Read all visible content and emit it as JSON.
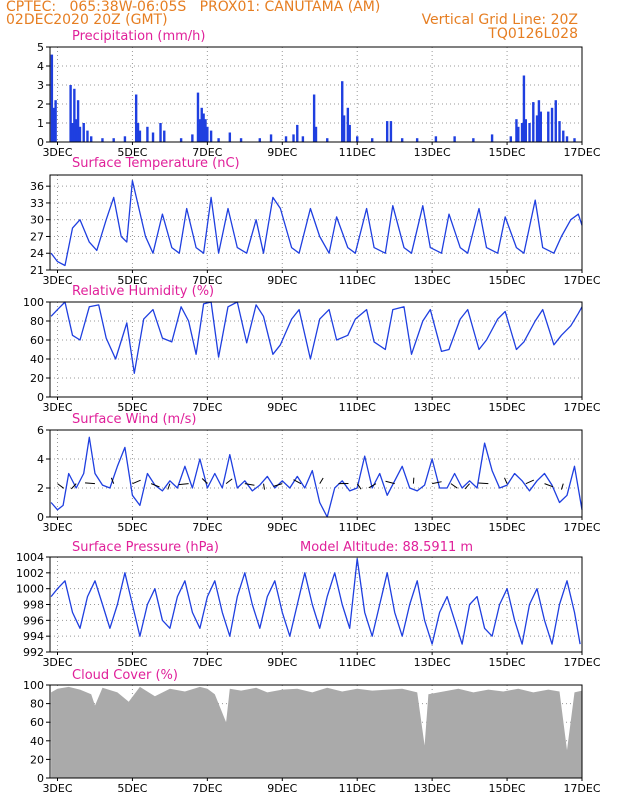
{
  "header": {
    "line1": "CPTEC:   065:38W-06:05S   PROX01: CANUTAMA (AM)",
    "line2_left": "02DEC2020 20Z (GMT)",
    "line2_right": "Vertical Grid Line: 20Z",
    "line3_right": "TQ0126L028"
  },
  "colors": {
    "header": "#e67e22",
    "panel_title": "#e0209a",
    "series": "#1f3fe0",
    "cloud": "#aaaaaa",
    "grid": "#999999"
  },
  "chart_data": [
    {
      "type": "bar",
      "title": "Precipitation (mm/h)",
      "x_ticks": [
        "3DEC",
        "5DEC",
        "7DEC",
        "9DEC",
        "11DEC",
        "13DEC",
        "15DEC",
        "17DEC"
      ],
      "xlim_days": [
        2.8,
        17.0
      ],
      "ylim": [
        0,
        5
      ],
      "yticks": [
        0,
        1,
        2,
        3,
        4,
        5
      ],
      "grid": true,
      "events": [
        {
          "day": 2.85,
          "value": 4.6
        },
        {
          "day": 2.9,
          "value": 1.8
        },
        {
          "day": 2.95,
          "value": 2.2
        },
        {
          "day": 3.35,
          "value": 3.0
        },
        {
          "day": 3.4,
          "value": 1.0
        },
        {
          "day": 3.45,
          "value": 2.8
        },
        {
          "day": 3.5,
          "value": 1.2
        },
        {
          "day": 3.55,
          "value": 2.2
        },
        {
          "day": 3.6,
          "value": 0.8
        },
        {
          "day": 3.7,
          "value": 1.0
        },
        {
          "day": 3.8,
          "value": 0.6
        },
        {
          "day": 3.9,
          "value": 0.3
        },
        {
          "day": 4.2,
          "value": 0.2
        },
        {
          "day": 4.5,
          "value": 0.2
        },
        {
          "day": 4.8,
          "value": 0.3
        },
        {
          "day": 5.1,
          "value": 2.5
        },
        {
          "day": 5.15,
          "value": 1.0
        },
        {
          "day": 5.2,
          "value": 0.6
        },
        {
          "day": 5.4,
          "value": 0.8
        },
        {
          "day": 5.55,
          "value": 0.5
        },
        {
          "day": 5.75,
          "value": 1.0
        },
        {
          "day": 5.85,
          "value": 0.6
        },
        {
          "day": 6.3,
          "value": 0.2
        },
        {
          "day": 6.6,
          "value": 0.4
        },
        {
          "day": 6.75,
          "value": 2.6
        },
        {
          "day": 6.8,
          "value": 1.2
        },
        {
          "day": 6.85,
          "value": 1.8
        },
        {
          "day": 6.9,
          "value": 1.5
        },
        {
          "day": 6.95,
          "value": 1.2
        },
        {
          "day": 7.0,
          "value": 0.8
        },
        {
          "day": 7.1,
          "value": 0.6
        },
        {
          "day": 7.3,
          "value": 0.2
        },
        {
          "day": 7.6,
          "value": 0.5
        },
        {
          "day": 7.9,
          "value": 0.2
        },
        {
          "day": 8.4,
          "value": 0.2
        },
        {
          "day": 8.7,
          "value": 0.4
        },
        {
          "day": 9.1,
          "value": 0.3
        },
        {
          "day": 9.3,
          "value": 0.4
        },
        {
          "day": 9.4,
          "value": 0.9
        },
        {
          "day": 9.55,
          "value": 0.3
        },
        {
          "day": 9.85,
          "value": 2.5
        },
        {
          "day": 9.9,
          "value": 0.8
        },
        {
          "day": 10.2,
          "value": 0.2
        },
        {
          "day": 10.6,
          "value": 3.2
        },
        {
          "day": 10.65,
          "value": 1.4
        },
        {
          "day": 10.75,
          "value": 1.8
        },
        {
          "day": 10.8,
          "value": 0.9
        },
        {
          "day": 11.0,
          "value": 0.3
        },
        {
          "day": 11.4,
          "value": 0.2
        },
        {
          "day": 11.8,
          "value": 1.1
        },
        {
          "day": 11.9,
          "value": 1.1
        },
        {
          "day": 12.2,
          "value": 0.2
        },
        {
          "day": 12.6,
          "value": 0.2
        },
        {
          "day": 13.1,
          "value": 0.3
        },
        {
          "day": 13.6,
          "value": 0.3
        },
        {
          "day": 14.1,
          "value": 0.2
        },
        {
          "day": 14.6,
          "value": 0.4
        },
        {
          "day": 15.1,
          "value": 0.3
        },
        {
          "day": 15.25,
          "value": 1.2
        },
        {
          "day": 15.3,
          "value": 0.8
        },
        {
          "day": 15.4,
          "value": 1.0
        },
        {
          "day": 15.45,
          "value": 3.5
        },
        {
          "day": 15.5,
          "value": 1.2
        },
        {
          "day": 15.6,
          "value": 1.0
        },
        {
          "day": 15.7,
          "value": 2.1
        },
        {
          "day": 15.8,
          "value": 1.4
        },
        {
          "day": 15.85,
          "value": 2.2
        },
        {
          "day": 15.9,
          "value": 1.6
        },
        {
          "day": 16.1,
          "value": 1.6
        },
        {
          "day": 16.2,
          "value": 1.8
        },
        {
          "day": 16.3,
          "value": 2.2
        },
        {
          "day": 16.4,
          "value": 1.1
        },
        {
          "day": 16.5,
          "value": 0.6
        },
        {
          "day": 16.6,
          "value": 0.3
        },
        {
          "day": 16.8,
          "value": 0.2
        }
      ]
    },
    {
      "type": "line",
      "title": "Surface Temperature (nC)",
      "x_ticks": [
        "3DEC",
        "5DEC",
        "7DEC",
        "9DEC",
        "11DEC",
        "13DEC",
        "15DEC",
        "17DEC"
      ],
      "xlim_days": [
        2.8,
        17.0
      ],
      "ylim": [
        21,
        38
      ],
      "yticks": [
        21,
        24,
        27,
        30,
        33,
        36
      ],
      "grid": true,
      "x": [
        2.83,
        3.0,
        3.2,
        3.4,
        3.6,
        3.85,
        4.05,
        4.3,
        4.5,
        4.7,
        4.85,
        5.0,
        5.35,
        5.55,
        5.8,
        6.05,
        6.25,
        6.45,
        6.7,
        6.9,
        7.1,
        7.3,
        7.55,
        7.8,
        8.05,
        8.3,
        8.5,
        8.75,
        8.95,
        9.25,
        9.45,
        9.75,
        10.0,
        10.25,
        10.45,
        10.75,
        10.95,
        11.25,
        11.45,
        11.75,
        11.95,
        12.25,
        12.45,
        12.75,
        12.95,
        13.25,
        13.45,
        13.75,
        13.95,
        14.25,
        14.45,
        14.75,
        14.95,
        15.25,
        15.45,
        15.75,
        15.95,
        16.25,
        16.45,
        16.7,
        16.9,
        17.0
      ],
      "y": [
        24.0,
        22.5,
        21.8,
        28.5,
        30.0,
        26.0,
        24.5,
        30.0,
        34.0,
        27.0,
        26.0,
        37.0,
        27.0,
        24.0,
        31.0,
        25.0,
        24.0,
        32.0,
        25.0,
        24.0,
        34.0,
        24.0,
        32.0,
        25.0,
        24.0,
        30.0,
        24.0,
        34.0,
        32.0,
        25.0,
        24.0,
        32.0,
        27.0,
        24.0,
        30.5,
        25.0,
        24.0,
        32.0,
        25.0,
        24.0,
        32.5,
        25.0,
        24.0,
        32.5,
        25.0,
        24.0,
        31.0,
        25.0,
        24.0,
        32.0,
        25.0,
        24.0,
        30.5,
        25.0,
        24.0,
        33.5,
        25.0,
        24.0,
        27.0,
        30.0,
        31.0,
        29.0
      ]
    },
    {
      "type": "line",
      "title": "Relative Humidity (%)",
      "x_ticks": [
        "3DEC",
        "5DEC",
        "7DEC",
        "9DEC",
        "11DEC",
        "13DEC",
        "15DEC",
        "17DEC"
      ],
      "xlim_days": [
        2.8,
        17.0
      ],
      "ylim": [
        0,
        100
      ],
      "yticks": [
        0,
        20,
        40,
        60,
        80,
        100
      ],
      "grid": true,
      "x": [
        2.83,
        3.0,
        3.2,
        3.4,
        3.6,
        3.85,
        4.1,
        4.3,
        4.55,
        4.85,
        5.05,
        5.3,
        5.55,
        5.8,
        6.05,
        6.3,
        6.5,
        6.7,
        6.9,
        7.1,
        7.3,
        7.55,
        7.8,
        8.05,
        8.3,
        8.5,
        8.75,
        8.95,
        9.25,
        9.45,
        9.75,
        10.0,
        10.25,
        10.45,
        10.75,
        10.95,
        11.25,
        11.45,
        11.75,
        11.95,
        12.25,
        12.45,
        12.75,
        12.95,
        13.25,
        13.45,
        13.75,
        13.95,
        14.25,
        14.45,
        14.75,
        14.95,
        15.25,
        15.45,
        15.75,
        15.95,
        16.25,
        16.45,
        16.7,
        16.9,
        17.0
      ],
      "y": [
        85,
        92,
        100,
        65,
        60,
        95,
        97,
        62,
        40,
        78,
        25,
        82,
        92,
        62,
        58,
        95,
        80,
        45,
        98,
        100,
        42,
        95,
        100,
        57,
        97,
        85,
        45,
        55,
        82,
        92,
        40,
        82,
        92,
        60,
        65,
        82,
        92,
        58,
        50,
        92,
        95,
        45,
        80,
        92,
        48,
        50,
        82,
        92,
        50,
        60,
        82,
        90,
        50,
        58,
        80,
        92,
        55,
        65,
        75,
        88,
        95
      ]
    },
    {
      "type": "line",
      "title": "Surface Wind (m/s)",
      "x_ticks": [
        "3DEC",
        "5DEC",
        "7DEC",
        "9DEC",
        "11DEC",
        "13DEC",
        "15DEC",
        "17DEC"
      ],
      "xlim_days": [
        2.8,
        17.0
      ],
      "ylim": [
        0,
        6
      ],
      "yticks": [
        0,
        2,
        4,
        6
      ],
      "grid": true,
      "x": [
        2.83,
        3.0,
        3.15,
        3.3,
        3.5,
        3.7,
        3.85,
        4.0,
        4.2,
        4.4,
        4.6,
        4.8,
        5.0,
        5.2,
        5.4,
        5.6,
        5.8,
        6.0,
        6.2,
        6.4,
        6.6,
        6.8,
        7.0,
        7.2,
        7.4,
        7.6,
        7.8,
        8.0,
        8.2,
        8.4,
        8.6,
        8.8,
        9.0,
        9.2,
        9.4,
        9.6,
        9.8,
        10.0,
        10.2,
        10.4,
        10.6,
        10.8,
        11.0,
        11.2,
        11.4,
        11.6,
        11.8,
        12.0,
        12.2,
        12.4,
        12.6,
        12.8,
        13.0,
        13.2,
        13.4,
        13.6,
        13.8,
        14.0,
        14.2,
        14.4,
        14.6,
        14.8,
        15.0,
        15.2,
        15.4,
        15.6,
        15.8,
        16.0,
        16.2,
        16.4,
        16.6,
        16.8,
        17.0
      ],
      "y": [
        1.0,
        0.5,
        0.8,
        3.0,
        2.0,
        3.0,
        5.5,
        3.0,
        2.2,
        2.0,
        3.5,
        4.8,
        1.5,
        0.8,
        3.0,
        2.2,
        1.8,
        2.5,
        2.0,
        3.5,
        2.0,
        4.0,
        2.0,
        3.0,
        2.0,
        4.3,
        2.0,
        2.5,
        1.8,
        2.2,
        2.8,
        2.0,
        2.5,
        2.0,
        2.8,
        2.0,
        3.2,
        1.0,
        0.0,
        2.0,
        2.5,
        1.8,
        2.0,
        4.2,
        2.0,
        3.0,
        1.5,
        2.5,
        3.5,
        2.0,
        1.8,
        2.2,
        4.0,
        2.0,
        2.0,
        3.0,
        2.0,
        2.5,
        2.0,
        5.1,
        3.2,
        2.0,
        2.2,
        3.0,
        2.5,
        1.8,
        2.5,
        3.0,
        2.2,
        1.0,
        1.5,
        3.5,
        0.5
      ]
    },
    {
      "type": "line",
      "title": "Surface Pressure (hPa)",
      "annotation": "Model Altitude: 88.5911 m",
      "x_ticks": [
        "3DEC",
        "5DEC",
        "7DEC",
        "9DEC",
        "11DEC",
        "13DEC",
        "15DEC",
        "17DEC"
      ],
      "xlim_days": [
        2.8,
        17.0
      ],
      "ylim": [
        992,
        1004
      ],
      "yticks": [
        992,
        994,
        996,
        998,
        1000,
        1002,
        1004
      ],
      "grid": true,
      "x": [
        2.83,
        3.0,
        3.2,
        3.4,
        3.6,
        3.8,
        4.0,
        4.2,
        4.4,
        4.6,
        4.8,
        5.0,
        5.2,
        5.4,
        5.6,
        5.8,
        6.0,
        6.2,
        6.4,
        6.6,
        6.8,
        7.0,
        7.2,
        7.4,
        7.6,
        7.8,
        8.0,
        8.2,
        8.4,
        8.6,
        8.8,
        9.0,
        9.2,
        9.4,
        9.6,
        9.8,
        10.0,
        10.2,
        10.4,
        10.6,
        10.8,
        11.0,
        11.2,
        11.4,
        11.6,
        11.8,
        12.0,
        12.2,
        12.4,
        12.6,
        12.8,
        13.0,
        13.2,
        13.4,
        13.6,
        13.8,
        14.0,
        14.2,
        14.4,
        14.6,
        14.8,
        15.0,
        15.2,
        15.4,
        15.6,
        15.8,
        16.0,
        16.2,
        16.4,
        16.6,
        16.8,
        16.95
      ],
      "y": [
        999.0,
        1000.0,
        1001.0,
        997.0,
        995.0,
        999.0,
        1001.0,
        998.0,
        995.0,
        998.0,
        1002.0,
        998.0,
        994.0,
        998.0,
        1000.0,
        996.0,
        995.0,
        999.0,
        1001.0,
        997.0,
        995.0,
        999.0,
        1001.0,
        997.0,
        994.0,
        999.0,
        1002.0,
        998.0,
        995.0,
        999.0,
        1001.0,
        997.0,
        994.0,
        998.0,
        1002.0,
        998.0,
        995.0,
        999.0,
        1002.0,
        998.0,
        995.0,
        1003.8,
        997.0,
        994.0,
        998.0,
        1002.0,
        997.0,
        994.0,
        998.0,
        1001.0,
        996.0,
        993.0,
        997.0,
        999.0,
        996.0,
        993.0,
        998.0,
        999.0,
        995.0,
        994.0,
        998.0,
        1000.0,
        996.0,
        993.0,
        998.0,
        1000.0,
        996.0,
        993.0,
        998.0,
        1001.0,
        997.0,
        993.0
      ]
    },
    {
      "type": "area",
      "title": "Cloud Cover (%)",
      "x_ticks": [
        "3DEC",
        "5DEC",
        "7DEC",
        "9DEC",
        "11DEC",
        "13DEC",
        "15DEC",
        "17DEC"
      ],
      "xlim_days": [
        2.8,
        17.0
      ],
      "ylim": [
        0,
        100
      ],
      "yticks": [
        0,
        20,
        40,
        60,
        80,
        100
      ],
      "grid": true,
      "x": [
        2.83,
        3.0,
        3.3,
        3.6,
        3.9,
        4.0,
        4.2,
        4.6,
        4.9,
        5.2,
        5.6,
        6.0,
        6.4,
        6.8,
        7.0,
        7.2,
        7.5,
        7.6,
        7.9,
        8.3,
        8.6,
        9.0,
        9.4,
        9.8,
        10.2,
        10.6,
        11.0,
        11.4,
        11.8,
        12.2,
        12.6,
        12.8,
        12.9,
        13.3,
        13.7,
        14.1,
        14.5,
        14.9,
        15.3,
        15.7,
        16.1,
        16.4,
        16.6,
        16.8,
        17.0
      ],
      "y": [
        92,
        96,
        98,
        95,
        90,
        78,
        97,
        92,
        82,
        98,
        88,
        96,
        93,
        98,
        96,
        90,
        60,
        96,
        94,
        97,
        92,
        95,
        96,
        92,
        97,
        93,
        96,
        94,
        95,
        96,
        92,
        35,
        90,
        93,
        96,
        92,
        95,
        93,
        96,
        92,
        95,
        93,
        30,
        92,
        94
      ]
    }
  ]
}
